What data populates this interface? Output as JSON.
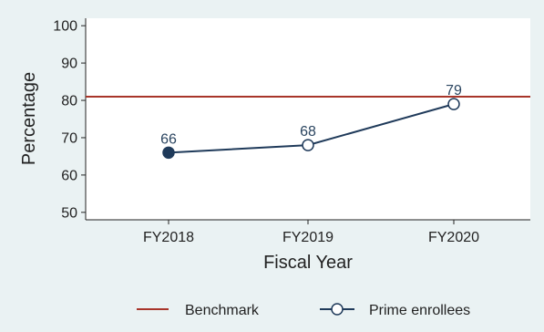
{
  "chart_data": {
    "type": "line",
    "title": "",
    "xlabel": "Fiscal Year",
    "ylabel": "Percentage",
    "categories": [
      "FY2018",
      "FY2019",
      "FY2020"
    ],
    "ylim": [
      48,
      102
    ],
    "yticks": [
      50,
      60,
      70,
      80,
      90,
      100
    ],
    "grid": false,
    "benchmark": {
      "name": "Benchmark",
      "value": 81,
      "color": "#a8352a"
    },
    "series": [
      {
        "name": "Prime enrollees",
        "values": [
          66,
          68,
          79
        ],
        "labels": [
          "66",
          "68",
          "79"
        ],
        "marker_filled": [
          true,
          false,
          false
        ],
        "color": "#1f3a5a"
      }
    ],
    "legend_position": "bottom"
  }
}
